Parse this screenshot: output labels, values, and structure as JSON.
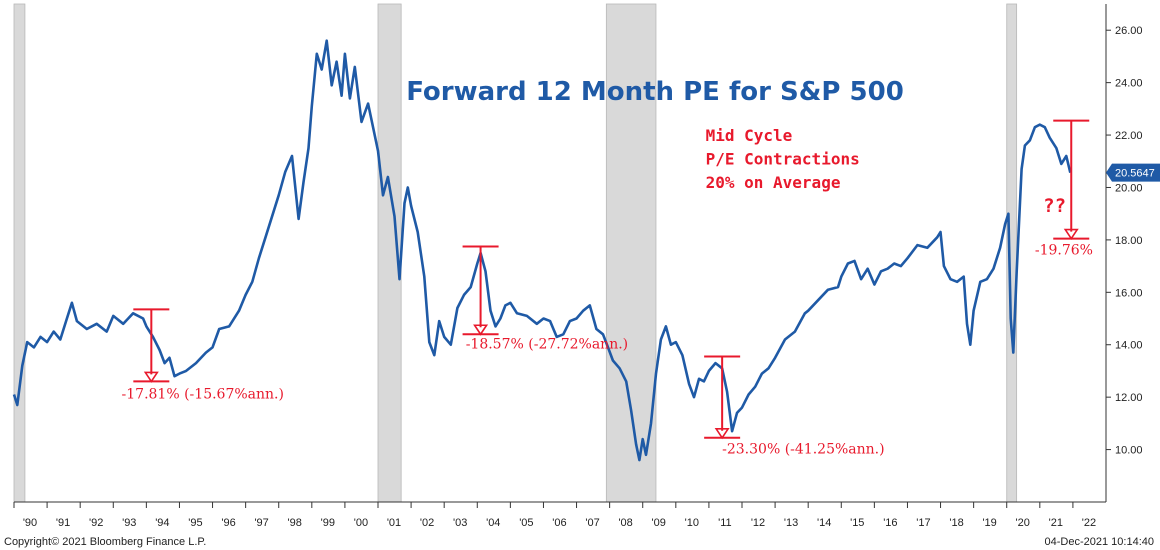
{
  "chart_data": {
    "type": "line",
    "title": "Forward 12 Month PE for S&P 500",
    "ylim": [
      8,
      27
    ],
    "y_ticks": [
      "10.00",
      "12.00",
      "14.00",
      "16.00",
      "18.00",
      "20.00",
      "22.00",
      "24.00",
      "26.00"
    ],
    "y_tick_values": [
      10,
      12,
      14,
      16,
      18,
      20,
      22,
      24,
      26
    ],
    "xlim": [
      1990.0,
      2023.0
    ],
    "x_tick_labels": [
      "'90",
      "'91",
      "'92",
      "'93",
      "'94",
      "'95",
      "'96",
      "'97",
      "'98",
      "'99",
      "'00",
      "'01",
      "'02",
      "'03",
      "'04",
      "'05",
      "'06",
      "'07",
      "'08",
      "'09",
      "'10",
      "'11",
      "'12",
      "'13",
      "'14",
      "'15",
      "'16",
      "'17",
      "'18",
      "'19",
      "'20",
      "'21",
      "'22"
    ],
    "x_tick_years": [
      1990,
      1991,
      1992,
      1993,
      1994,
      1995,
      1996,
      1997,
      1998,
      1999,
      2000,
      2001,
      2002,
      2003,
      2004,
      2005,
      2006,
      2007,
      2008,
      2009,
      2010,
      2011,
      2012,
      2013,
      2014,
      2015,
      2016,
      2017,
      2018,
      2019,
      2020,
      2021,
      2022
    ],
    "recessions": [
      [
        1990.0,
        1990.33
      ],
      [
        2001.0,
        2001.7
      ],
      [
        2007.9,
        2009.4
      ],
      [
        2020.0,
        2020.3
      ]
    ],
    "last_value_label": "20.5647",
    "series": [
      {
        "color": "#1f5aa6",
        "points": [
          [
            1990.0,
            12.1
          ],
          [
            1990.1,
            11.7
          ],
          [
            1990.25,
            13.2
          ],
          [
            1990.4,
            14.1
          ],
          [
            1990.6,
            13.9
          ],
          [
            1990.8,
            14.3
          ],
          [
            1991.0,
            14.1
          ],
          [
            1991.2,
            14.5
          ],
          [
            1991.4,
            14.2
          ],
          [
            1991.6,
            15.0
          ],
          [
            1991.75,
            15.6
          ],
          [
            1991.9,
            14.9
          ],
          [
            1992.2,
            14.6
          ],
          [
            1992.5,
            14.8
          ],
          [
            1992.8,
            14.5
          ],
          [
            1993.0,
            15.1
          ],
          [
            1993.3,
            14.8
          ],
          [
            1993.6,
            15.2
          ],
          [
            1993.9,
            15.0
          ],
          [
            1994.0,
            14.7
          ],
          [
            1994.2,
            14.3
          ],
          [
            1994.4,
            13.8
          ],
          [
            1994.55,
            13.3
          ],
          [
            1994.7,
            13.5
          ],
          [
            1994.85,
            12.8
          ],
          [
            1995.0,
            12.9
          ],
          [
            1995.2,
            13.0
          ],
          [
            1995.5,
            13.3
          ],
          [
            1995.8,
            13.7
          ],
          [
            1996.0,
            13.9
          ],
          [
            1996.2,
            14.6
          ],
          [
            1996.5,
            14.7
          ],
          [
            1996.8,
            15.3
          ],
          [
            1997.0,
            15.9
          ],
          [
            1997.2,
            16.4
          ],
          [
            1997.4,
            17.3
          ],
          [
            1997.6,
            18.1
          ],
          [
            1997.8,
            18.9
          ],
          [
            1998.0,
            19.7
          ],
          [
            1998.2,
            20.6
          ],
          [
            1998.4,
            21.2
          ],
          [
            1998.6,
            18.8
          ],
          [
            1998.75,
            20.2
          ],
          [
            1998.9,
            21.5
          ],
          [
            1999.0,
            23.1
          ],
          [
            1999.15,
            25.1
          ],
          [
            1999.3,
            24.5
          ],
          [
            1999.45,
            25.6
          ],
          [
            1999.6,
            23.9
          ],
          [
            1999.75,
            24.8
          ],
          [
            1999.9,
            23.5
          ],
          [
            2000.0,
            25.1
          ],
          [
            2000.15,
            23.4
          ],
          [
            2000.3,
            24.6
          ],
          [
            2000.5,
            22.5
          ],
          [
            2000.7,
            23.2
          ],
          [
            2000.9,
            22.0
          ],
          [
            2001.0,
            21.4
          ],
          [
            2001.15,
            19.7
          ],
          [
            2001.3,
            20.4
          ],
          [
            2001.5,
            18.9
          ],
          [
            2001.65,
            16.5
          ],
          [
            2001.8,
            19.4
          ],
          [
            2001.9,
            20.0
          ],
          [
            2002.0,
            19.3
          ],
          [
            2002.2,
            18.3
          ],
          [
            2002.4,
            16.6
          ],
          [
            2002.55,
            14.1
          ],
          [
            2002.7,
            13.6
          ],
          [
            2002.85,
            14.9
          ],
          [
            2003.0,
            14.3
          ],
          [
            2003.2,
            14.0
          ],
          [
            2003.4,
            15.4
          ],
          [
            2003.6,
            15.9
          ],
          [
            2003.8,
            16.2
          ],
          [
            2004.0,
            17.1
          ],
          [
            2004.1,
            17.5
          ],
          [
            2004.25,
            16.8
          ],
          [
            2004.4,
            15.3
          ],
          [
            2004.55,
            14.7
          ],
          [
            2004.7,
            15.0
          ],
          [
            2004.85,
            15.5
          ],
          [
            2005.0,
            15.6
          ],
          [
            2005.2,
            15.2
          ],
          [
            2005.5,
            15.1
          ],
          [
            2005.8,
            14.8
          ],
          [
            2006.0,
            15.0
          ],
          [
            2006.2,
            14.9
          ],
          [
            2006.4,
            14.3
          ],
          [
            2006.6,
            14.4
          ],
          [
            2006.8,
            14.9
          ],
          [
            2007.0,
            15.0
          ],
          [
            2007.2,
            15.3
          ],
          [
            2007.4,
            15.5
          ],
          [
            2007.6,
            14.6
          ],
          [
            2007.8,
            14.4
          ],
          [
            2007.95,
            13.9
          ],
          [
            2008.1,
            13.4
          ],
          [
            2008.3,
            13.1
          ],
          [
            2008.5,
            12.6
          ],
          [
            2008.65,
            11.5
          ],
          [
            2008.8,
            10.2
          ],
          [
            2008.9,
            9.6
          ],
          [
            2009.0,
            10.4
          ],
          [
            2009.1,
            9.8
          ],
          [
            2009.25,
            11.0
          ],
          [
            2009.4,
            12.9
          ],
          [
            2009.55,
            14.2
          ],
          [
            2009.7,
            14.7
          ],
          [
            2009.85,
            14.0
          ],
          [
            2010.0,
            14.1
          ],
          [
            2010.2,
            13.6
          ],
          [
            2010.4,
            12.5
          ],
          [
            2010.55,
            12.0
          ],
          [
            2010.7,
            12.7
          ],
          [
            2010.85,
            12.6
          ],
          [
            2011.0,
            13.0
          ],
          [
            2011.2,
            13.3
          ],
          [
            2011.4,
            13.1
          ],
          [
            2011.55,
            12.2
          ],
          [
            2011.7,
            10.7
          ],
          [
            2011.85,
            11.4
          ],
          [
            2012.0,
            11.6
          ],
          [
            2012.2,
            12.1
          ],
          [
            2012.4,
            12.4
          ],
          [
            2012.6,
            12.9
          ],
          [
            2012.8,
            13.1
          ],
          [
            2013.0,
            13.5
          ],
          [
            2013.3,
            14.2
          ],
          [
            2013.6,
            14.5
          ],
          [
            2013.9,
            15.2
          ],
          [
            2014.0,
            15.3
          ],
          [
            2014.3,
            15.7
          ],
          [
            2014.6,
            16.1
          ],
          [
            2014.9,
            16.2
          ],
          [
            2015.0,
            16.6
          ],
          [
            2015.2,
            17.1
          ],
          [
            2015.4,
            17.2
          ],
          [
            2015.6,
            16.5
          ],
          [
            2015.8,
            16.9
          ],
          [
            2016.0,
            16.3
          ],
          [
            2016.2,
            16.8
          ],
          [
            2016.4,
            16.9
          ],
          [
            2016.6,
            17.1
          ],
          [
            2016.8,
            17.0
          ],
          [
            2017.0,
            17.3
          ],
          [
            2017.3,
            17.8
          ],
          [
            2017.6,
            17.7
          ],
          [
            2017.9,
            18.1
          ],
          [
            2018.0,
            18.3
          ],
          [
            2018.1,
            17.0
          ],
          [
            2018.3,
            16.5
          ],
          [
            2018.5,
            16.4
          ],
          [
            2018.7,
            16.6
          ],
          [
            2018.8,
            14.8
          ],
          [
            2018.9,
            14.0
          ],
          [
            2019.0,
            15.3
          ],
          [
            2019.2,
            16.4
          ],
          [
            2019.4,
            16.5
          ],
          [
            2019.6,
            16.9
          ],
          [
            2019.8,
            17.7
          ],
          [
            2019.95,
            18.6
          ],
          [
            2020.05,
            19.0
          ],
          [
            2020.12,
            15.0
          ],
          [
            2020.2,
            13.7
          ],
          [
            2020.3,
            16.8
          ],
          [
            2020.45,
            20.7
          ],
          [
            2020.55,
            21.6
          ],
          [
            2020.7,
            21.8
          ],
          [
            2020.85,
            22.3
          ],
          [
            2021.0,
            22.4
          ],
          [
            2021.15,
            22.3
          ],
          [
            2021.3,
            21.9
          ],
          [
            2021.5,
            21.5
          ],
          [
            2021.65,
            20.9
          ],
          [
            2021.8,
            21.2
          ],
          [
            2021.92,
            20.5647
          ]
        ]
      }
    ],
    "contractions": [
      {
        "label": "-17.81% (-15.67%ann.)",
        "x": 1994.15,
        "y_top": 15.35,
        "y_bot": 12.6,
        "lx": 1993.25,
        "ly": 12.1
      },
      {
        "label": "-18.57% (-27.72%ann.)",
        "x": 2004.1,
        "y_top": 17.75,
        "y_bot": 14.4,
        "lx": 2003.65,
        "ly": 14.0
      },
      {
        "label": "-23.30% (-41.25%ann.)",
        "x": 2011.4,
        "y_top": 13.55,
        "y_bot": 10.45,
        "lx": 2011.4,
        "ly": 10.0
      },
      {
        "label": "-19.76%",
        "x": 2021.95,
        "y_top": 22.55,
        "y_bot": 18.05,
        "lx": 2020.85,
        "ly": 17.6
      }
    ],
    "annotations": [
      {
        "text": "Mid Cycle",
        "x": 2010.9,
        "y": 22.0
      },
      {
        "text": "P/E Contractions",
        "x": 2010.9,
        "y": 21.1
      },
      {
        "text": "20% on Average",
        "x": 2010.9,
        "y": 20.2
      },
      {
        "text": "??",
        "x": 2021.1,
        "y": 19.3
      }
    ],
    "annotation_color": "#e8192c",
    "recession_color": "#d9d9d9",
    "axis_color": "#333333",
    "line_color": "#1f5aa6"
  },
  "footer": {
    "copyright": "Copyright© 2021 Bloomberg Finance L.P.",
    "timestamp": "04-Dec-2021 10:14:40"
  }
}
